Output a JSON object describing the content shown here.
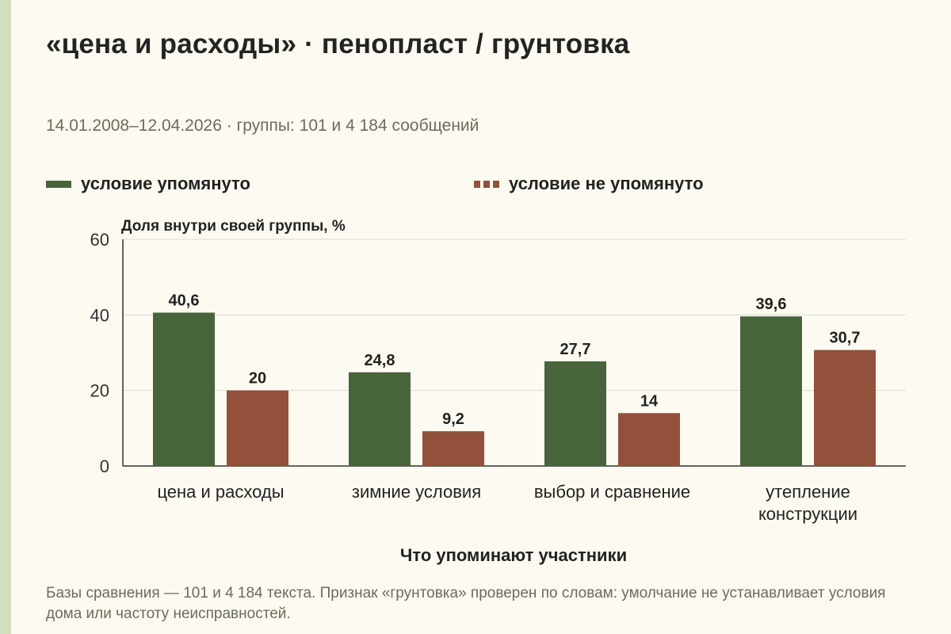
{
  "page": {
    "title": "«цена и расходы» · пенопласт / грунтовка",
    "subtitle": "14.01.2008–12.04.2026 · группы: 101 и 4 184 сообщений",
    "footnote": "Базы сравнения — 101 и 4 184 текста. Признак «грунтовка» проверен по словам: умолчание не устанавливает условия дома или частоту неисправностей."
  },
  "colors": {
    "mentioned": "#48643a",
    "not_mentioned": "#93503a",
    "background": "#fdfbf1",
    "grid": "#d9d9d2",
    "side_strip": "#d3dfc1"
  },
  "chart_data": {
    "type": "bar",
    "title": "«цена и расходы» · пенопласт / грунтовка",
    "ylabel": "Доля внутри своей группы, %",
    "xlabel": "Что упоминают участники",
    "ylim": [
      0,
      60
    ],
    "yticks": [
      "0",
      "20",
      "40",
      "60"
    ],
    "grid": true,
    "legend_position": "top",
    "categories": [
      [
        "цена и расходы"
      ],
      [
        "зимние условия"
      ],
      [
        "выбор и сравнение"
      ],
      [
        "утепление",
        "конструкции"
      ]
    ],
    "series": [
      {
        "name": "условие упомянуто",
        "values": [
          40.6,
          24.8,
          27.7,
          39.6
        ],
        "labels": [
          "40,6",
          "24,8",
          "27,7",
          "39,6"
        ],
        "style": "solid"
      },
      {
        "name": "условие не упомянуто",
        "values": [
          20,
          9.2,
          14,
          30.7
        ],
        "labels": [
          "20",
          "9,2",
          "14",
          "30,7"
        ],
        "style": "dashed"
      }
    ]
  }
}
